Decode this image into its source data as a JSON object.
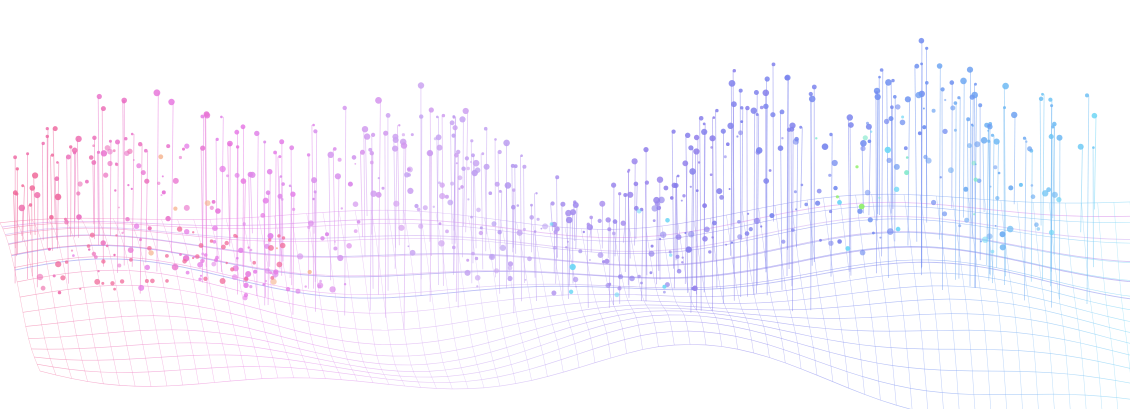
{
  "artwork": {
    "kind": "3D wireframe surface with vertical lollipop stems (abstract data-art)",
    "palette": {
      "pink": "#f06a9a",
      "magenta": "#e67ae6",
      "lavender": "#c9a6f2",
      "violet": "#8b7bea",
      "blue": "#6f8cf0",
      "cyan": "#6fd7f5",
      "mint": "#7de8c9",
      "green": "#8ef06a",
      "peach": "#f5b08a"
    },
    "layers": [
      "mesh-back",
      "mesh-front",
      "stems",
      "dots"
    ]
  }
}
